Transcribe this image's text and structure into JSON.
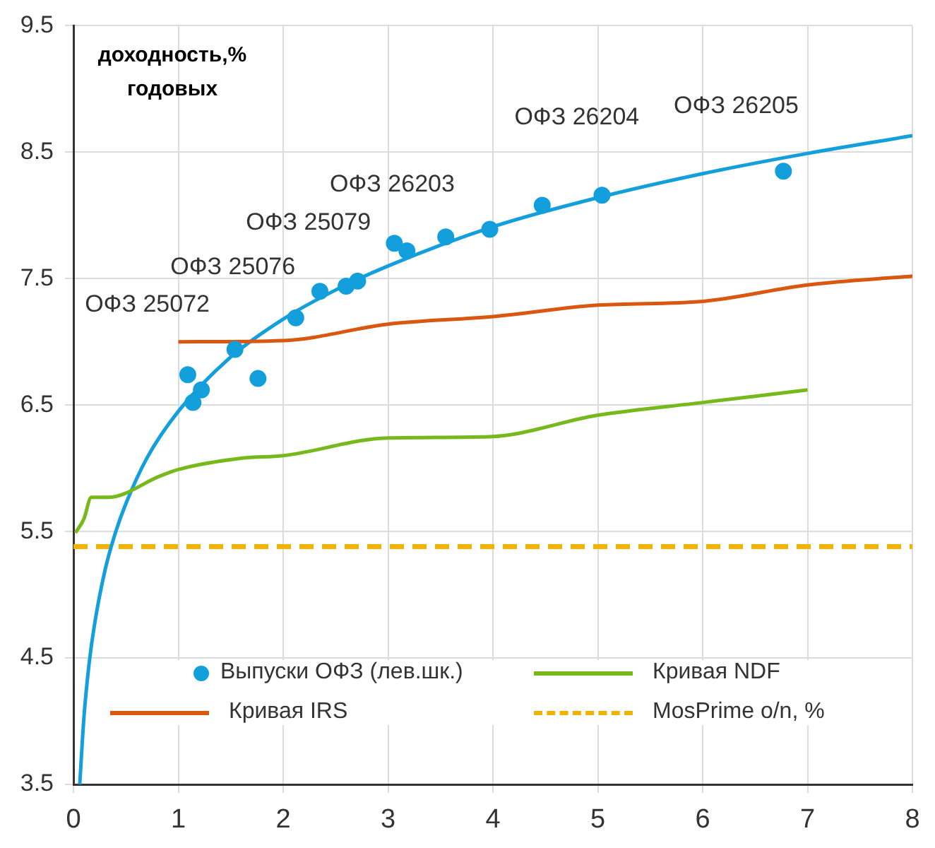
{
  "chart_data": {
    "type": "scatter",
    "ylabel": "доходность,% годовых",
    "xlim": [
      0,
      8
    ],
    "xticks": [
      0,
      1,
      2,
      3,
      4,
      5,
      6,
      7,
      8
    ],
    "ylim": [
      3.5,
      9.5
    ],
    "yticks": [
      3.5,
      4.5,
      5.5,
      6.5,
      7.5,
      8.5,
      9.5
    ],
    "grid": true,
    "legend": "bottom",
    "marker": "circle",
    "series": [
      {
        "name": "Выпуски ОФЗ (лев.шк.)",
        "color": "#139fdb",
        "x": [
          1.09,
          1.14,
          1.22,
          1.54,
          1.76,
          2.12,
          2.35,
          2.6,
          2.71,
          3.06,
          3.18,
          3.55,
          3.97,
          4.47,
          5.04,
          6.77
        ],
        "values": [
          6.74,
          6.52,
          6.62,
          6.94,
          6.71,
          7.19,
          7.4,
          7.44,
          7.48,
          7.78,
          7.72,
          7.83,
          7.89,
          8.08,
          8.16,
          8.35
        ]
      },
      {
        "name": "Кривая NDF",
        "type": "line",
        "color": "#77b81c",
        "marker": "none",
        "x": [
          0.02,
          0.1,
          0.17,
          0.33,
          0.83,
          1.0,
          1.61,
          2.0,
          3.0,
          3.97,
          5.0,
          6.0,
          7.0
        ],
        "values": [
          5.49,
          5.6,
          5.77,
          5.77,
          5.94,
          5.99,
          6.08,
          6.1,
          6.24,
          6.25,
          6.42,
          6.52,
          6.62
        ]
      },
      {
        "name": "Кривая IRS",
        "type": "line",
        "color": "#d9570f",
        "marker": "none",
        "x": [
          1,
          2,
          3,
          4,
          5,
          6,
          7,
          8
        ],
        "values": [
          7.0,
          7.01,
          7.14,
          7.2,
          7.29,
          7.32,
          7.45,
          7.52
        ]
      },
      {
        "type": "line",
        "color": "#139fdb",
        "marker": "none",
        "x": [
          0.06,
          0.1,
          0.15,
          0.2,
          0.3,
          0.4,
          0.5,
          0.7,
          1,
          1.5,
          2,
          2.5,
          3,
          4,
          5,
          6,
          7,
          8
        ],
        "values": [
          3.5,
          4.03,
          4.46,
          4.76,
          5.19,
          5.49,
          5.72,
          6.08,
          6.45,
          6.88,
          7.18,
          7.41,
          7.6,
          7.91,
          8.14,
          8.33,
          8.49,
          8.63
        ]
      }
    ],
    "ref_lines": [
      {
        "axis": "y",
        "value": 5.38,
        "label": "MosPrime o/n, %",
        "color": "#f0b400",
        "line_style": "dashed"
      }
    ],
    "annotations": [
      "ОФЗ 25072",
      "ОФЗ 25076",
      "ОФЗ 25079",
      "ОФЗ 26203",
      "ОФЗ 26204",
      "ОФЗ 26205"
    ]
  }
}
